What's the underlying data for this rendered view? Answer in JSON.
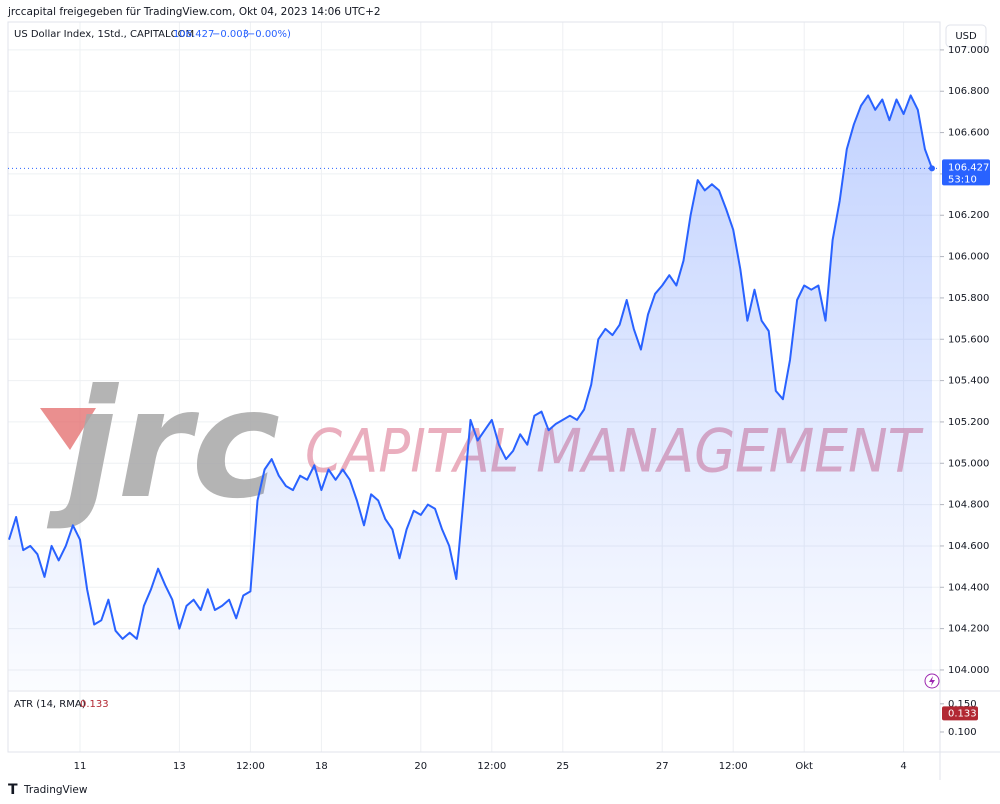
{
  "chart_data": {
    "type": "area",
    "header": "jrccapital freigegeben für TradingView.com, Okt 04, 2023 14:06 UTC+2",
    "symbol_label": "US Dollar Index, 1Std., CAPITALCOM",
    "legend_values": [
      "106.427",
      "−0.003",
      "(−0.00%)"
    ],
    "currency": "USD",
    "color": "#2962ff",
    "grid": true,
    "categories": [
      null,
      null,
      null,
      null,
      null,
      null,
      null,
      null,
      null,
      null,
      "11",
      null,
      null,
      null,
      null,
      null,
      null,
      null,
      null,
      null,
      null,
      null,
      null,
      null,
      "13",
      null,
      null,
      null,
      null,
      null,
      null,
      null,
      null,
      null,
      "12:00",
      null,
      null,
      null,
      null,
      null,
      null,
      null,
      null,
      null,
      "18",
      null,
      null,
      null,
      null,
      null,
      null,
      null,
      null,
      null,
      null,
      null,
      null,
      null,
      "20",
      null,
      null,
      null,
      null,
      null,
      null,
      null,
      null,
      null,
      "12:00",
      null,
      null,
      null,
      null,
      null,
      null,
      null,
      null,
      null,
      "25",
      null,
      null,
      null,
      null,
      null,
      null,
      null,
      null,
      null,
      null,
      null,
      null,
      null,
      "27",
      null,
      null,
      null,
      null,
      null,
      null,
      null,
      null,
      null,
      "12:00",
      null,
      null,
      null,
      null,
      null,
      null,
      null,
      null,
      null,
      "Okt",
      null,
      null,
      null,
      null,
      null,
      null,
      null,
      null,
      null,
      null,
      null,
      null,
      null,
      "4",
      null,
      null,
      null,
      null
    ],
    "values": [
      104.63,
      104.74,
      104.58,
      104.6,
      104.56,
      104.45,
      104.6,
      104.53,
      104.6,
      104.7,
      104.63,
      104.39,
      104.22,
      104.24,
      104.34,
      104.19,
      104.15,
      104.18,
      104.15,
      104.31,
      104.39,
      104.49,
      104.41,
      104.34,
      104.2,
      104.31,
      104.34,
      104.29,
      104.39,
      104.29,
      104.31,
      104.34,
      104.25,
      104.36,
      104.38,
      104.82,
      104.97,
      105.02,
      104.94,
      104.89,
      104.87,
      104.94,
      104.92,
      104.99,
      104.87,
      104.97,
      104.92,
      104.97,
      104.92,
      104.82,
      104.7,
      104.85,
      104.82,
      104.73,
      104.68,
      104.54,
      104.68,
      104.77,
      104.75,
      104.8,
      104.78,
      104.68,
      104.6,
      104.44,
      104.82,
      105.21,
      105.11,
      105.16,
      105.21,
      105.09,
      105.02,
      105.06,
      105.14,
      105.09,
      105.23,
      105.25,
      105.16,
      105.19,
      105.21,
      105.23,
      105.21,
      105.26,
      105.38,
      105.6,
      105.65,
      105.62,
      105.67,
      105.79,
      105.65,
      105.55,
      105.72,
      105.82,
      105.86,
      105.91,
      105.86,
      105.98,
      106.2,
      106.37,
      106.32,
      106.35,
      106.32,
      106.23,
      106.13,
      105.94,
      105.69,
      105.84,
      105.69,
      105.64,
      105.35,
      105.31,
      105.5,
      105.79,
      105.86,
      105.84,
      105.86,
      105.69,
      106.08,
      106.27,
      106.52,
      106.64,
      106.73,
      106.78,
      106.71,
      106.76,
      106.66,
      106.76,
      106.69,
      106.78,
      106.71,
      106.52,
      106.427
    ],
    "ylim": [
      103.903,
      107.135
    ],
    "yticks": [
      {
        "value": 104.0,
        "label": "104.000"
      },
      {
        "value": 104.2,
        "label": "104.200"
      },
      {
        "value": 104.4,
        "label": "104.400"
      },
      {
        "value": 104.6,
        "label": "104.600"
      },
      {
        "value": 104.8,
        "label": "104.800"
      },
      {
        "value": 105.0,
        "label": "105.000"
      },
      {
        "value": 105.2,
        "label": "105.200"
      },
      {
        "value": 105.4,
        "label": "105.400"
      },
      {
        "value": 105.6,
        "label": "105.600"
      },
      {
        "value": 105.8,
        "label": "105.800"
      },
      {
        "value": 106.0,
        "label": "106.000"
      },
      {
        "value": 106.2,
        "label": "106.200"
      },
      {
        "value": 106.4,
        "label": "106.400"
      },
      {
        "value": 106.6,
        "label": "106.600"
      },
      {
        "value": 106.8,
        "label": "106.800"
      },
      {
        "value": 107.0,
        "label": "107.000"
      }
    ],
    "last_price": 106.427,
    "last_price_countdown": "53:10",
    "indicator": {
      "label": "ATR (14, RMA)",
      "value": 0.133,
      "color": "#b22833",
      "ylim": [
        0.068,
        0.171
      ],
      "yticks": [
        {
          "value": 0.15,
          "label": "0.150"
        },
        {
          "value": 0.1,
          "label": "0.100"
        }
      ]
    },
    "watermark": {
      "logo": "jrc",
      "text": "CAPITAL MANAGEMENT"
    },
    "footer": "TradingView"
  }
}
